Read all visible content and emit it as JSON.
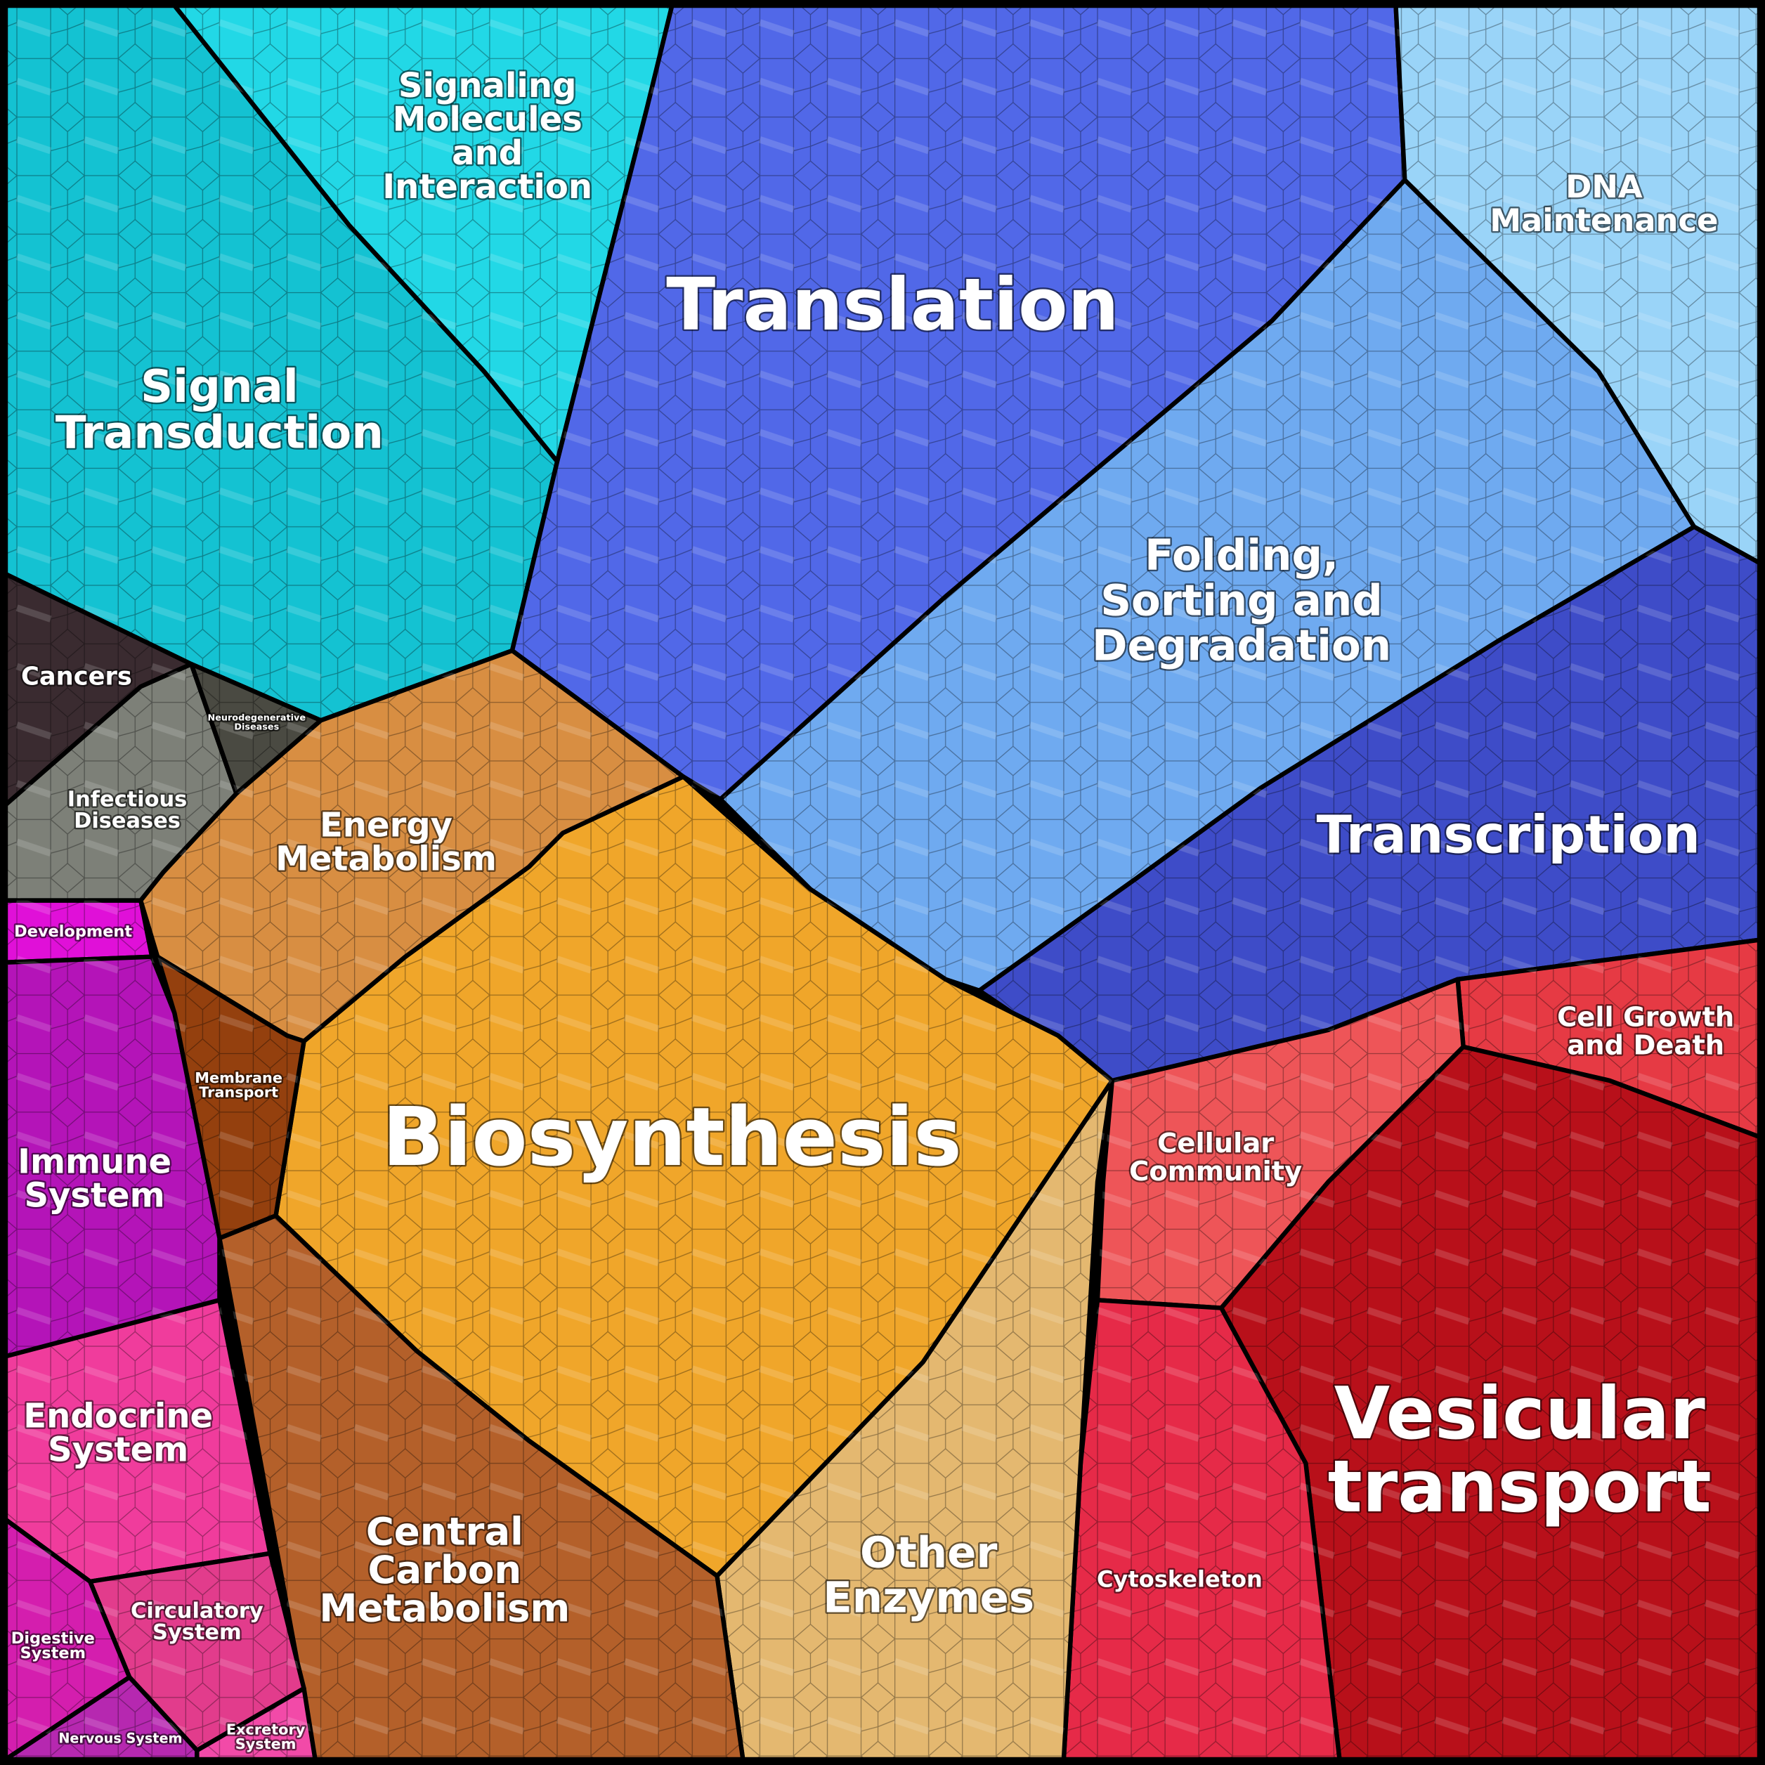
{
  "regions": [
    {
      "label": [
        "Signaling",
        "Molecules",
        "and",
        "Interaction"
      ]
    },
    {
      "label": [
        "Signal",
        "Transduction"
      ]
    },
    {
      "label": [
        "Cancers"
      ]
    },
    {
      "label": [
        "Infectious",
        "Diseases"
      ]
    },
    {
      "label": [
        "Neurodegenerative",
        "Diseases"
      ]
    },
    {
      "label": [
        "Translation"
      ]
    },
    {
      "label": [
        "DNA",
        "Maintenance"
      ]
    },
    {
      "label": [
        "Folding,",
        "Sorting and",
        "Degradation"
      ]
    },
    {
      "label": [
        "Transcription"
      ]
    },
    {
      "label": [
        "Cell Growth",
        "and Death"
      ]
    },
    {
      "label": [
        "Cellular",
        "Community"
      ]
    },
    {
      "label": [
        "Vesicular",
        "transport"
      ]
    },
    {
      "label": [
        "Cytoskeleton"
      ]
    },
    {
      "label": [
        "Other",
        "Enzymes"
      ]
    },
    {
      "label": [
        "Biosynthesis"
      ]
    },
    {
      "label": [
        "Energy",
        "Metabolism"
      ]
    },
    {
      "label": [
        "Membrane",
        "Transport"
      ]
    },
    {
      "label": [
        "Central",
        "Carbon",
        "Metabolism"
      ]
    },
    {
      "label": [
        "Development"
      ]
    },
    {
      "label": [
        "Immune",
        "System"
      ]
    },
    {
      "label": [
        "Endocrine",
        "System"
      ]
    },
    {
      "label": [
        "Circulatory",
        "System"
      ]
    },
    {
      "label": [
        "Digestive",
        "System"
      ]
    },
    {
      "label": [
        "Nervous System"
      ]
    },
    {
      "label": [
        "Excretory",
        "System"
      ]
    }
  ]
}
